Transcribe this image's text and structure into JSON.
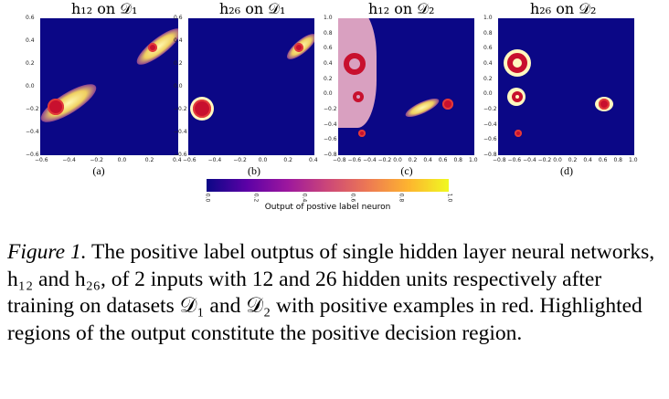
{
  "panels": [
    {
      "title": "h₁₂ on 𝒟₁",
      "label": "(a)",
      "yticks": [
        "0.6",
        "0.4",
        "0.2",
        "0.0",
        "−0.2",
        "−0.4",
        "−0.6"
      ],
      "xticks": [
        "−0.6",
        "−0.4",
        "−0.2",
        "0.0",
        "0.2",
        "0.4"
      ]
    },
    {
      "title": "h₂₆ on 𝒟₁",
      "label": "(b)",
      "yticks": [
        "0.6",
        "0.4",
        "0.2",
        "0.0",
        "−0.2",
        "−0.4",
        "−0.6"
      ],
      "xticks": [
        "−0.6",
        "−0.4",
        "−0.2",
        "0.0",
        "0.2",
        "0.4"
      ]
    },
    {
      "title": "h₁₂ on 𝒟₂",
      "label": "(c)",
      "yticks": [
        "1.0",
        "0.8",
        "0.6",
        "0.4",
        "0.2",
        "0.0",
        "−0.2",
        "−0.4",
        "−0.6",
        "−0.8"
      ],
      "xticks": [
        "−0.8",
        "−0.6",
        "−0.4",
        "−0.2",
        "0.0",
        "0.2",
        "0.4",
        "0.6",
        "0.8",
        "1.0"
      ]
    },
    {
      "title": "h₂₆ on 𝒟₂",
      "label": "(d)",
      "yticks": [
        "1.0",
        "0.8",
        "0.6",
        "0.4",
        "0.2",
        "0.0",
        "−0.2",
        "−0.4",
        "−0.6",
        "−0.8"
      ],
      "xticks": [
        "−0.8",
        "−0.6",
        "−0.4",
        "−0.2",
        "0.0",
        "0.2",
        "0.4",
        "0.6",
        "0.8",
        "1.0"
      ]
    }
  ],
  "colorbar": {
    "ticks": [
      "0.0",
      "0.2",
      "0.4",
      "0.6",
      "0.8",
      "1.0"
    ],
    "label": "Output of postive label neuron",
    "colors": [
      "#0b0786",
      "#5c01a6",
      "#9c179e",
      "#cc4778",
      "#ed7953",
      "#fdb42f",
      "#f0f921"
    ]
  },
  "caption": {
    "lead": "Figure 1.",
    "text": " The positive label outptus of single hidden layer neural networks, h₁₂ and h₂₆, of 2 inputs with 12 and 26 hidden units respectively after training on datasets 𝒟₁ and 𝒟₂ with positive examples in red. Highlighted regions of the output constitute the positive decision region."
  },
  "colors": {
    "background": "#0b0786",
    "positive": "#c8102e",
    "highlight": "#f5f0a0"
  }
}
